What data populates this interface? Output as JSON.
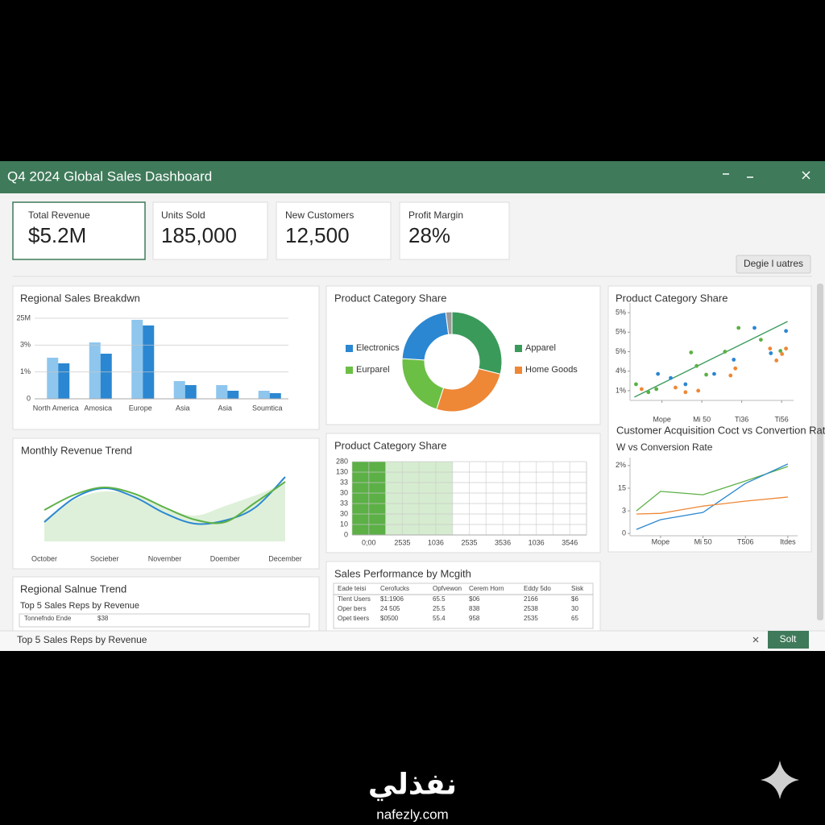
{
  "window": {
    "title": "Q4 2024 Global Sales Dashboard"
  },
  "kpis": [
    {
      "label": "Total Revenue",
      "value": "$5.2M"
    },
    {
      "label": "Units Sold",
      "value": "185,000"
    },
    {
      "label": "New Customers",
      "value": "12,500"
    },
    {
      "label": "Profit Margin",
      "value": "28%"
    }
  ],
  "button": "Degie l uatres",
  "chart_data": [
    {
      "type": "bar",
      "title": "Regional Sales Breakdwn",
      "categories": [
        "North America",
        "Amosica",
        "Europe",
        "Asia",
        "Asia",
        "Soumtica"
      ],
      "series": [
        {
          "color": "#8ec6ee",
          "values": [
            1.53,
            2.1,
            2.94,
            0.66,
            0.51,
            0.3
          ]
        },
        {
          "color": "#2b87d1",
          "values": [
            1.32,
            1.68,
            2.73,
            0.51,
            0.3,
            0.21
          ]
        }
      ],
      "ylim": [
        0,
        3
      ],
      "yticks": [
        0,
        {
          "value": 1,
          "label": "1%"
        },
        {
          "value": 2,
          "label": "3%"
        },
        {
          "value": 3,
          "label": "25M"
        }
      ],
      "grid": true
    },
    {
      "type": "pie",
      "title": "Product Category Share",
      "donut": true,
      "categories": [
        "Apparel",
        "Home Goods",
        "Eurparel",
        "Electronics",
        null
      ],
      "values": [
        29,
        26,
        21,
        22,
        2
      ],
      "colors": [
        "#3a9a5a",
        "#ee8736",
        "#6cbf45",
        "#2b87d1",
        "#9a9a9a"
      ]
    },
    {
      "type": "scatter",
      "title": "Product Category Share",
      "series": [
        {
          "color": "#5cb046",
          "x": [
            0.35,
            0.66,
            0.86,
            1.73,
            1.87,
            2.11,
            2.58,
            2.92,
            3.48,
            3.97
          ],
          "y": [
            1.33,
            0.92,
            1.08,
            2.96,
            2.27,
            1.82,
            3.0,
            4.22,
            3.61,
            3.04
          ]
        },
        {
          "color": "#2b87d1",
          "x": [
            0.9,
            1.22,
            1.59,
            2.31,
            2.8,
            3.32,
            3.73,
            4.11
          ],
          "y": [
            1.86,
            1.65,
            1.33,
            1.86,
            2.59,
            4.22,
            2.92,
            4.06
          ]
        },
        {
          "color": "#ee8736",
          "x": [
            0.49,
            1.34,
            1.59,
            1.91,
            2.72,
            2.84,
            3.71,
            3.87,
            4.01,
            4.11
          ],
          "y": [
            1.08,
            1.16,
            0.92,
            1.0,
            1.78,
            2.14,
            3.16,
            2.55,
            2.88,
            3.16
          ]
        }
      ],
      "trendline": {
        "color": "#3a9a5a",
        "x": [
          0.31,
          4.15
        ],
        "y": [
          0.67,
          4.55
        ]
      },
      "xlim": [
        0.2,
        4.3
      ],
      "ylim": [
        0.5,
        5.5
      ],
      "xticks": [
        {
          "value": 1,
          "label": "Mope"
        },
        {
          "value": 2,
          "label": "Mi 50"
        },
        {
          "value": 3,
          "label": "Ti36"
        },
        {
          "value": 4,
          "label": "Ti56"
        }
      ],
      "yticks": [
        {
          "value": 1,
          "label": "1%"
        },
        {
          "value": 2,
          "label": "4%"
        },
        {
          "value": 3,
          "label": "5%"
        },
        {
          "value": 4,
          "label": "5%"
        },
        {
          "value": 5,
          "label": "5%"
        }
      ],
      "grid": false
    },
    {
      "type": "line",
      "title": "Customer Acquisition Coct vs Convertion Rate",
      "subtitle": "W vs Conversion Rate",
      "x": [
        0.43,
        1,
        2,
        3,
        4
      ],
      "series": [
        {
          "color": "#5cb046",
          "values": [
            1.0,
            1.86,
            1.71,
            2.32,
            2.96
          ]
        },
        {
          "color": "#2b87d1",
          "values": [
            0.18,
            0.61,
            0.93,
            2.21,
            3.07
          ]
        },
        {
          "color": "#ee8736",
          "values": [
            0.86,
            0.89,
            1.21,
            1.43,
            1.61
          ]
        }
      ],
      "xlim": [
        0.28,
        4.23
      ],
      "ylim": [
        -0.1,
        3.35
      ],
      "xticks": [
        {
          "value": 1,
          "label": "Mope"
        },
        {
          "value": 2,
          "label": "Mi 50"
        },
        {
          "value": 3,
          "label": "T506"
        },
        {
          "value": 4,
          "label": "Itdes"
        }
      ],
      "yticks": [
        0,
        {
          "value": 1,
          "label": "3"
        },
        {
          "value": 2,
          "label": "15"
        },
        {
          "value": 3,
          "label": "2%"
        }
      ],
      "grid": false
    },
    {
      "type": "line",
      "title": "Monthly Revenue Trend",
      "smooth": true,
      "categories": [
        "October",
        null,
        "Socieber",
        null,
        "November",
        null,
        "Doember",
        null,
        "December"
      ],
      "series": [
        {
          "color": "#d6ecd0",
          "area": true,
          "values": [
            27,
            52,
            62,
            57,
            42,
            32,
            44,
            57,
            72
          ]
        },
        {
          "color": "#2b87d1",
          "values": [
            24,
            54,
            66,
            55,
            35,
            22,
            26,
            42,
            80
          ]
        },
        {
          "color": "#5cb046",
          "values": [
            39,
            58,
            67,
            59,
            42,
            27,
            24,
            48,
            74
          ]
        }
      ],
      "ylim": [
        0,
        92
      ]
    },
    {
      "type": "bar",
      "title": "Product Category Share",
      "categories": [
        "0;00",
        "2535",
        "1036",
        "2535",
        "3536",
        "1036",
        "3546"
      ],
      "values": [
        7,
        7,
        7,
        0,
        0,
        0,
        0
      ],
      "colors": [
        "#5cb046",
        "#d6ecd0",
        "#d6ecd0",
        "#d6ecd0",
        "#d6ecd0",
        "#d6ecd0",
        "#d6ecd0"
      ],
      "ylim": [
        0,
        7
      ],
      "yticks": [
        0,
        {
          "value": 1,
          "label": "10"
        },
        {
          "value": 2,
          "label": "30"
        },
        {
          "value": 3,
          "label": "33"
        },
        {
          "value": 4,
          "label": "30"
        },
        {
          "value": 5,
          "label": "33"
        },
        {
          "value": 6,
          "label": "130"
        },
        {
          "value": 7,
          "label": "280"
        }
      ],
      "grid": true
    }
  ],
  "table": {
    "title": "Sales Performance by Mcgith",
    "header": [
      "Eade teisi",
      "Cerofucks",
      "Opfvewon",
      "Cerem Horn",
      "Eddy 5do",
      "Sisk"
    ],
    "rows": [
      [
        "Tlent Users",
        "$1:1906",
        "65.5",
        "$06",
        "2166",
        "$6"
      ],
      [
        "Oper bers",
        "24 505",
        "25.5",
        "838",
        "2538",
        "30"
      ],
      [
        "Opet tieers",
        "$0500",
        "55.4",
        "958",
        "2535",
        "65"
      ]
    ]
  },
  "reps_panel": {
    "title": "Regional Salnue Trend",
    "subtitle": "Top 5 Sales Reps by Revenue",
    "rows": [
      [
        "Tonnefndo Ende",
        "$38"
      ]
    ]
  },
  "status_bar": {
    "text": "Top 5 Sales Reps by Revenue",
    "button": "Solt"
  },
  "watermark": {
    "arabic": "نفذلي",
    "latin": "nafezly.com"
  }
}
